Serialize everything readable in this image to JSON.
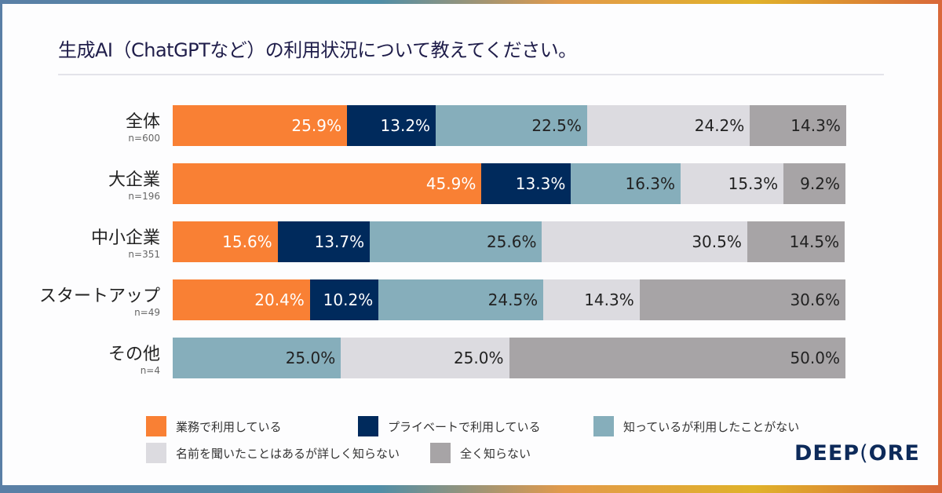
{
  "title": "生成AI（ChatGPTなど）の利用状況について教えてください。",
  "logo": "DEEPCORE",
  "chart_data": {
    "type": "bar",
    "orientation": "horizontal",
    "stacked": true,
    "xlim": [
      0,
      100
    ],
    "categories": [
      "全体",
      "大企業",
      "中小企業",
      "スタートアップ",
      "その他"
    ],
    "sample_sizes": [
      "n=600",
      "n=196",
      "n=351",
      "n=49",
      "n=4"
    ],
    "series": [
      {
        "name": "業務で利用している",
        "color": "#F98034",
        "values": [
          25.9,
          45.9,
          15.6,
          20.4,
          0
        ]
      },
      {
        "name": "プライベートで利用している",
        "color": "#002A5C",
        "values": [
          13.2,
          13.3,
          13.7,
          10.2,
          0
        ]
      },
      {
        "name": "知っているが利用したことがない",
        "color": "#86AEBB",
        "values": [
          22.5,
          16.3,
          25.6,
          24.5,
          25.0
        ]
      },
      {
        "name": "名前を聞いたことはあるが詳しく知らない",
        "color": "#DCDBE0",
        "values": [
          24.2,
          15.3,
          30.5,
          14.3,
          25.0
        ]
      },
      {
        "name": "全く知らない",
        "color": "#A7A4A6",
        "values": [
          14.3,
          9.2,
          14.5,
          30.6,
          50.0
        ]
      }
    ],
    "label_colors": [
      "#ffffff",
      "#ffffff",
      "#222222",
      "#222222",
      "#222222"
    ],
    "legend_position": "bottom"
  }
}
